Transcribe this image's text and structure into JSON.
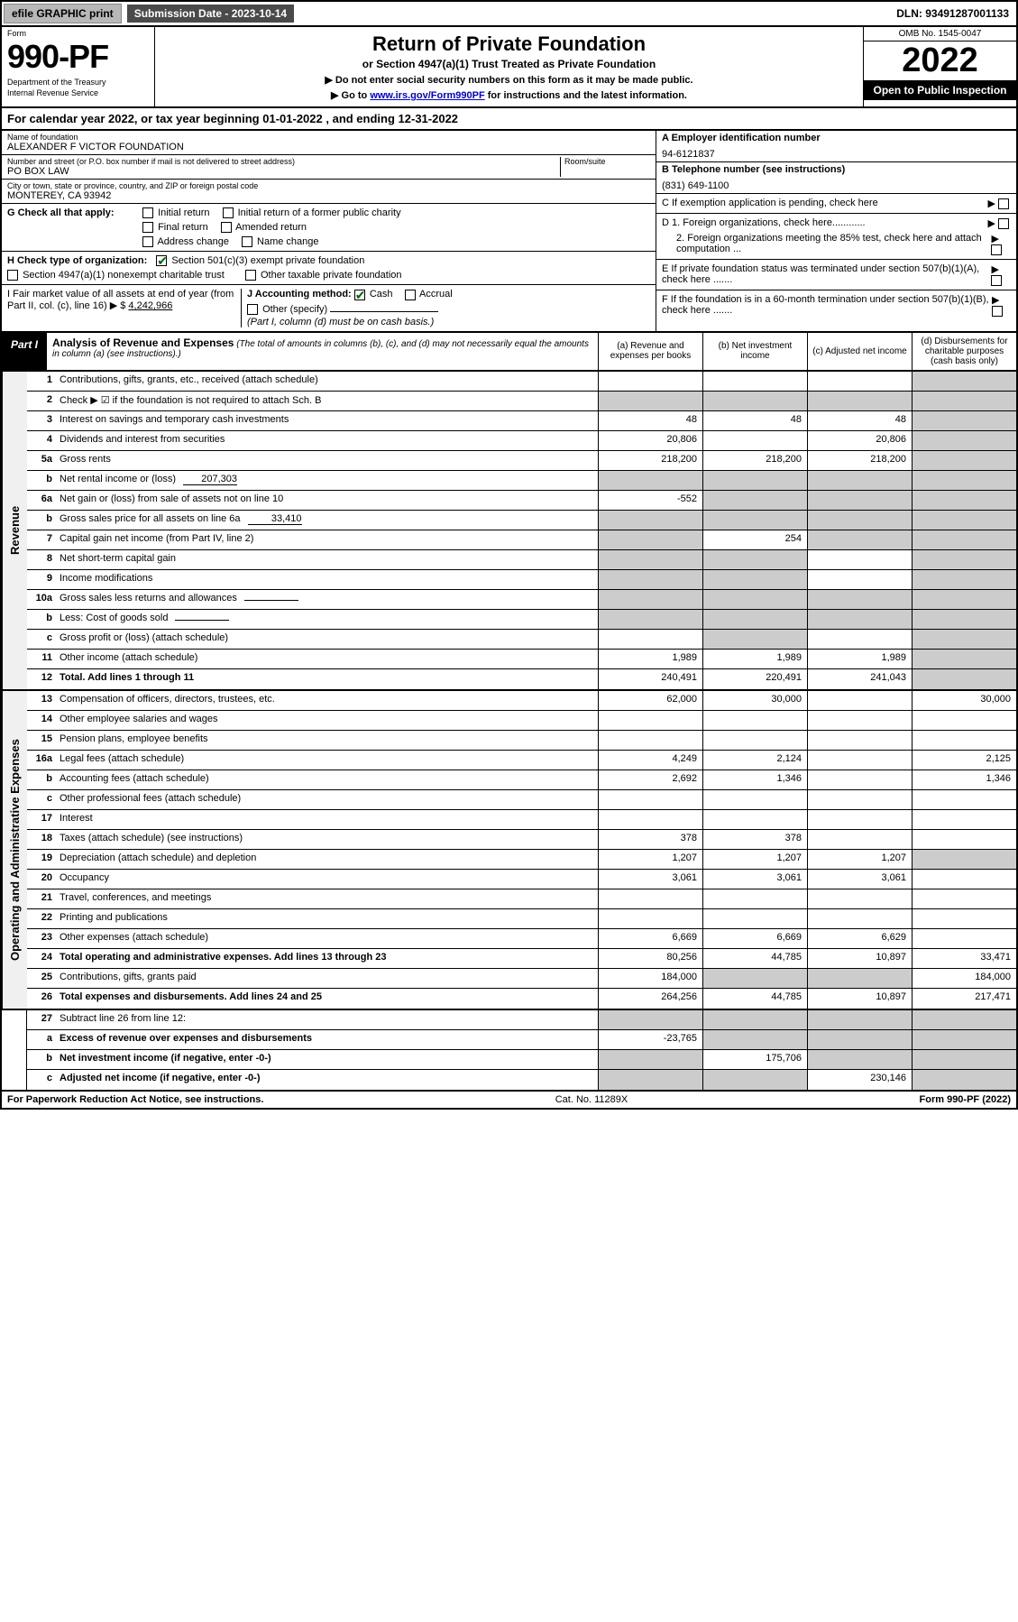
{
  "topbar": {
    "efile": "efile GRAPHIC print",
    "submission": "Submission Date - 2023-10-14",
    "dln": "DLN: 93491287001133"
  },
  "header": {
    "form_label": "Form",
    "form_number": "990-PF",
    "dept1": "Department of the Treasury",
    "dept2": "Internal Revenue Service",
    "title": "Return of Private Foundation",
    "subtitle": "or Section 4947(a)(1) Trust Treated as Private Foundation",
    "note1": "▶ Do not enter social security numbers on this form as it may be made public.",
    "note2_pre": "▶ Go to ",
    "note2_link": "www.irs.gov/Form990PF",
    "note2_post": " for instructions and the latest information.",
    "omb": "OMB No. 1545-0047",
    "year": "2022",
    "open_pub": "Open to Public Inspection"
  },
  "cal_year": {
    "text_pre": "For calendar year 2022, or tax year beginning ",
    "begin": "01-01-2022",
    "text_mid": " , and ending ",
    "end": "12-31-2022"
  },
  "entity": {
    "name_label": "Name of foundation",
    "name": "ALEXANDER F VICTOR FOUNDATION",
    "addr_label": "Number and street (or P.O. box number if mail is not delivered to street address)",
    "addr": "PO BOX LAW",
    "room_label": "Room/suite",
    "city_label": "City or town, state or province, country, and ZIP or foreign postal code",
    "city": "MONTEREY, CA  93942",
    "a_label": "A Employer identification number",
    "a_val": "94-6121837",
    "b_label": "B Telephone number (see instructions)",
    "b_val": "(831) 649-1100",
    "c_label": "C If exemption application is pending, check here",
    "d1_label": "D 1. Foreign organizations, check here............",
    "d2_label": "2. Foreign organizations meeting the 85% test, check here and attach computation ...",
    "e_label": "E  If private foundation status was terminated under section 507(b)(1)(A), check here .......",
    "f_label": "F  If the foundation is in a 60-month termination under section 507(b)(1)(B), check here .......",
    "g_label": "G Check all that apply:",
    "g_opts": [
      "Initial return",
      "Initial return of a former public charity",
      "Final return",
      "Amended return",
      "Address change",
      "Name change"
    ],
    "h_label": "H Check type of organization:",
    "h_opt1": "Section 501(c)(3) exempt private foundation",
    "h_opt2": "Section 4947(a)(1) nonexempt charitable trust",
    "h_opt3": "Other taxable private foundation",
    "i_label": "I Fair market value of all assets at end of year (from Part II, col. (c), line 16) ▶ $",
    "i_val": "4,242,966",
    "j_label": "J Accounting method:",
    "j_opt1": "Cash",
    "j_opt2": "Accrual",
    "j_opt3": "Other (specify)",
    "j_note": "(Part I, column (d) must be on cash basis.)"
  },
  "part1": {
    "label": "Part I",
    "title": "Analysis of Revenue and Expenses",
    "note": "(The total of amounts in columns (b), (c), and (d) may not necessarily equal the amounts in column (a) (see instructions).)",
    "col_a": "(a)  Revenue and expenses per books",
    "col_b": "(b)  Net investment income",
    "col_c": "(c)  Adjusted net income",
    "col_d": "(d)  Disbursements for charitable purposes (cash basis only)"
  },
  "sections": {
    "revenue": "Revenue",
    "expenses": "Operating and Administrative Expenses"
  },
  "rows": [
    {
      "n": "1",
      "label": "Contributions, gifts, grants, etc., received (attach schedule)",
      "a": "",
      "b": "",
      "c": "",
      "d": "",
      "shade": [
        "d"
      ]
    },
    {
      "n": "2",
      "label": "Check ▶ ☑ if the foundation is not required to attach Sch. B",
      "a": "",
      "b": "",
      "c": "",
      "d": "",
      "shade": [
        "a",
        "b",
        "c",
        "d"
      ],
      "dots": true
    },
    {
      "n": "3",
      "label": "Interest on savings and temporary cash investments",
      "a": "48",
      "b": "48",
      "c": "48",
      "d": "",
      "shade": [
        "d"
      ]
    },
    {
      "n": "4",
      "label": "Dividends and interest from securities",
      "a": "20,806",
      "b": "",
      "c": "20,806",
      "d": "",
      "shade": [
        "d"
      ],
      "dots": true
    },
    {
      "n": "5a",
      "label": "Gross rents",
      "a": "218,200",
      "b": "218,200",
      "c": "218,200",
      "d": "",
      "shade": [
        "d"
      ],
      "dots": true
    },
    {
      "n": "b",
      "label": "Net rental income or (loss)",
      "inline": "207,303",
      "a": "",
      "b": "",
      "c": "",
      "d": "",
      "shade": [
        "a",
        "b",
        "c",
        "d"
      ]
    },
    {
      "n": "6a",
      "label": "Net gain or (loss) from sale of assets not on line 10",
      "a": "-552",
      "b": "",
      "c": "",
      "d": "",
      "shade": [
        "b",
        "c",
        "d"
      ]
    },
    {
      "n": "b",
      "label": "Gross sales price for all assets on line 6a",
      "inline": "33,410",
      "a": "",
      "b": "",
      "c": "",
      "d": "",
      "shade": [
        "a",
        "b",
        "c",
        "d"
      ]
    },
    {
      "n": "7",
      "label": "Capital gain net income (from Part IV, line 2)",
      "a": "",
      "b": "254",
      "c": "",
      "d": "",
      "shade": [
        "a",
        "c",
        "d"
      ],
      "dots": true
    },
    {
      "n": "8",
      "label": "Net short-term capital gain",
      "a": "",
      "b": "",
      "c": "",
      "d": "",
      "shade": [
        "a",
        "b",
        "d"
      ],
      "dots": true
    },
    {
      "n": "9",
      "label": "Income modifications",
      "a": "",
      "b": "",
      "c": "",
      "d": "",
      "shade": [
        "a",
        "b",
        "d"
      ],
      "dots": true
    },
    {
      "n": "10a",
      "label": "Gross sales less returns and allowances",
      "inline": "",
      "a": "",
      "b": "",
      "c": "",
      "d": "",
      "shade": [
        "a",
        "b",
        "c",
        "d"
      ]
    },
    {
      "n": "b",
      "label": "Less: Cost of goods sold",
      "inline": "",
      "a": "",
      "b": "",
      "c": "",
      "d": "",
      "shade": [
        "a",
        "b",
        "c",
        "d"
      ],
      "dots": true
    },
    {
      "n": "c",
      "label": "Gross profit or (loss) (attach schedule)",
      "a": "",
      "b": "",
      "c": "",
      "d": "",
      "shade": [
        "b",
        "d"
      ],
      "dots": true
    },
    {
      "n": "11",
      "label": "Other income (attach schedule)",
      "a": "1,989",
      "b": "1,989",
      "c": "1,989",
      "d": "",
      "shade": [
        "d"
      ],
      "dots": true
    },
    {
      "n": "12",
      "label": "Total. Add lines 1 through 11",
      "bold": true,
      "a": "240,491",
      "b": "220,491",
      "c": "241,043",
      "d": "",
      "shade": [
        "d"
      ],
      "dots": true
    }
  ],
  "exp_rows": [
    {
      "n": "13",
      "label": "Compensation of officers, directors, trustees, etc.",
      "a": "62,000",
      "b": "30,000",
      "c": "",
      "d": "30,000"
    },
    {
      "n": "14",
      "label": "Other employee salaries and wages",
      "a": "",
      "b": "",
      "c": "",
      "d": "",
      "dots": true
    },
    {
      "n": "15",
      "label": "Pension plans, employee benefits",
      "a": "",
      "b": "",
      "c": "",
      "d": "",
      "dots": true
    },
    {
      "n": "16a",
      "label": "Legal fees (attach schedule)",
      "a": "4,249",
      "b": "2,124",
      "c": "",
      "d": "2,125",
      "dots": true
    },
    {
      "n": "b",
      "label": "Accounting fees (attach schedule)",
      "a": "2,692",
      "b": "1,346",
      "c": "",
      "d": "1,346",
      "dots": true
    },
    {
      "n": "c",
      "label": "Other professional fees (attach schedule)",
      "a": "",
      "b": "",
      "c": "",
      "d": "",
      "dots": true
    },
    {
      "n": "17",
      "label": "Interest",
      "a": "",
      "b": "",
      "c": "",
      "d": "",
      "dots": true
    },
    {
      "n": "18",
      "label": "Taxes (attach schedule) (see instructions)",
      "a": "378",
      "b": "378",
      "c": "",
      "d": "",
      "dots": true
    },
    {
      "n": "19",
      "label": "Depreciation (attach schedule) and depletion",
      "a": "1,207",
      "b": "1,207",
      "c": "1,207",
      "d": "",
      "shade": [
        "d"
      ],
      "dots": true
    },
    {
      "n": "20",
      "label": "Occupancy",
      "a": "3,061",
      "b": "3,061",
      "c": "3,061",
      "d": "",
      "dots": true
    },
    {
      "n": "21",
      "label": "Travel, conferences, and meetings",
      "a": "",
      "b": "",
      "c": "",
      "d": "",
      "dots": true
    },
    {
      "n": "22",
      "label": "Printing and publications",
      "a": "",
      "b": "",
      "c": "",
      "d": "",
      "dots": true
    },
    {
      "n": "23",
      "label": "Other expenses (attach schedule)",
      "a": "6,669",
      "b": "6,669",
      "c": "6,629",
      "d": "",
      "dots": true
    },
    {
      "n": "24",
      "label": "Total operating and administrative expenses. Add lines 13 through 23",
      "bold": true,
      "a": "80,256",
      "b": "44,785",
      "c": "10,897",
      "d": "33,471",
      "dots": true
    },
    {
      "n": "25",
      "label": "Contributions, gifts, grants paid",
      "a": "184,000",
      "b": "",
      "c": "",
      "d": "184,000",
      "shade": [
        "b",
        "c"
      ],
      "dots": true
    },
    {
      "n": "26",
      "label": "Total expenses and disbursements. Add lines 24 and 25",
      "bold": true,
      "a": "264,256",
      "b": "44,785",
      "c": "10,897",
      "d": "217,471"
    }
  ],
  "bottom_rows": [
    {
      "n": "27",
      "label": "Subtract line 26 from line 12:",
      "a": "",
      "b": "",
      "c": "",
      "d": "",
      "shade": [
        "a",
        "b",
        "c",
        "d"
      ]
    },
    {
      "n": "a",
      "label": "Excess of revenue over expenses and disbursements",
      "bold": true,
      "a": "-23,765",
      "b": "",
      "c": "",
      "d": "",
      "shade": [
        "b",
        "c",
        "d"
      ]
    },
    {
      "n": "b",
      "label": "Net investment income (if negative, enter -0-)",
      "bold": true,
      "a": "",
      "b": "175,706",
      "c": "",
      "d": "",
      "shade": [
        "a",
        "c",
        "d"
      ]
    },
    {
      "n": "c",
      "label": "Adjusted net income (if negative, enter -0-)",
      "bold": true,
      "a": "",
      "b": "",
      "c": "230,146",
      "d": "",
      "shade": [
        "a",
        "b",
        "d"
      ],
      "dots": true
    }
  ],
  "footer": {
    "left": "For Paperwork Reduction Act Notice, see instructions.",
    "mid": "Cat. No. 11289X",
    "right": "Form 990-PF (2022)"
  },
  "colors": {
    "shaded": "#cccccc",
    "header_dark": "#4a4a4a",
    "link": "#0000cc",
    "check": "#006400"
  }
}
